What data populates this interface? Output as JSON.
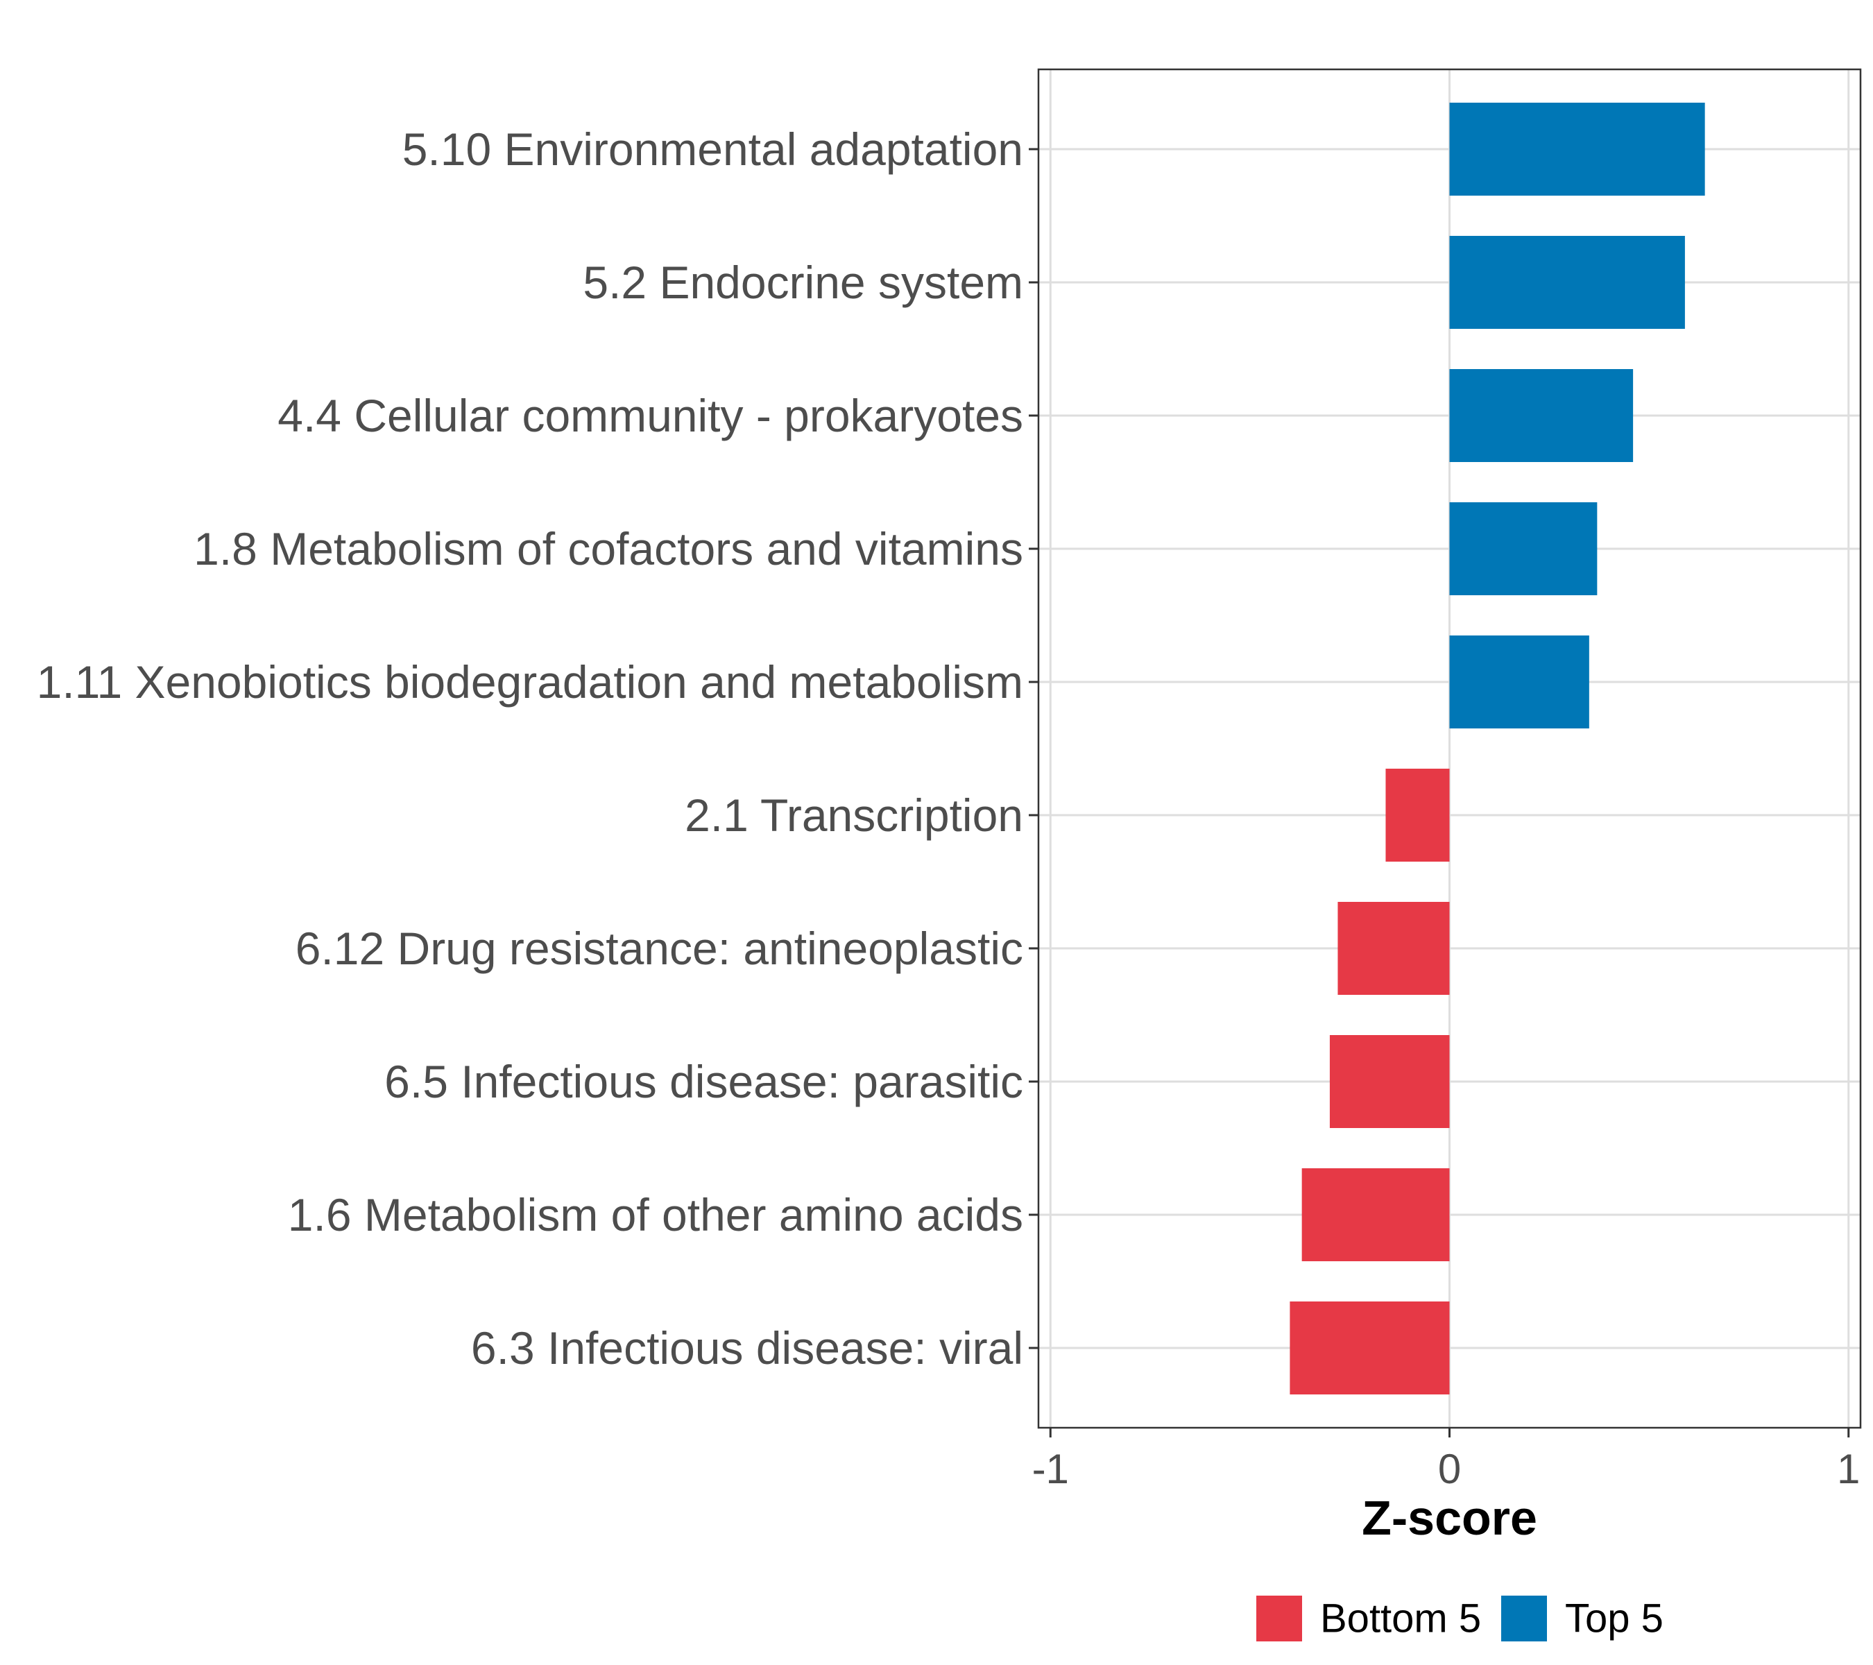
{
  "chart_data": {
    "type": "bar",
    "orientation": "horizontal",
    "title": "",
    "xlabel": "Z-score",
    "ylabel": "",
    "xlim": [
      -1.03,
      1.03
    ],
    "xticks": [
      -1,
      0,
      1
    ],
    "xtick_labels": [
      "-1",
      "0",
      "1"
    ],
    "grid": true,
    "legend_position": "bottom",
    "categories": [
      "5.10 Environmental adaptation",
      "5.2 Endocrine system",
      "4.4 Cellular community - prokaryotes",
      "1.8 Metabolism of cofactors and vitamins",
      "1.11 Xenobiotics biodegradation and metabolism",
      "2.1 Transcription",
      "6.12 Drug resistance: antineoplastic",
      "6.5 Infectious disease: parasitic",
      "1.6 Metabolism of other amino acids",
      "6.3 Infectious disease: viral"
    ],
    "values": [
      0.64,
      0.59,
      0.46,
      0.37,
      0.35,
      -0.16,
      -0.28,
      -0.3,
      -0.37,
      -0.4
    ],
    "groups": [
      "Top 5",
      "Top 5",
      "Top 5",
      "Top 5",
      "Top 5",
      "Bottom 5",
      "Bottom 5",
      "Bottom 5",
      "Bottom 5",
      "Bottom 5"
    ],
    "legend": [
      {
        "name": "Bottom 5",
        "color": "#E63946"
      },
      {
        "name": "Top 5",
        "color": "#0077B6"
      }
    ]
  }
}
